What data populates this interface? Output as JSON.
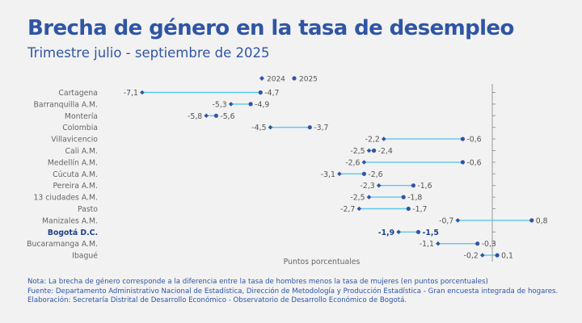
{
  "title": "Brecha de género en la tasa de desempleo",
  "subtitle": "Trimestre julio - septiembre de 2025",
  "colors": {
    "title": "#2f55a4",
    "connector": "#5bc7f0",
    "marker_2024": "#2f55a4",
    "marker_2025": "#2f55a4",
    "label_text": "#555555",
    "highlight_text": "#1f3f86",
    "axis": "#9a9a9a"
  },
  "notes": [
    "Nota: La brecha de género corresponde a la diferencia entre la tasa de hombres menos la tasa de mujeres (en puntos porcentuales)",
    "Fuente: Departamento Administrativo Nacional de Estadística, Dirección de Metodología y Producción Estadística - Gran encuesta integrada de hogares.",
    "Elaboración: Secretaría Distrital de Desarrollo Económico - Observatorio de Desarrollo Económico de Bogotá."
  ],
  "chart_data": {
    "type": "dumbbell",
    "title": "Brecha de género en la tasa de desempleo",
    "subtitle": "Trimestre julio - septiembre de 2025",
    "xlabel": "Puntos porcentuales",
    "ylabel": "",
    "xlim": [
      -7.5,
      1.0
    ],
    "grid": false,
    "legend_position": "top",
    "series_names": [
      "2024",
      "2025"
    ],
    "highlight_category": "Bogotá D.C.",
    "categories": [
      "Cartagena",
      "Barranquilla A.M.",
      "Montería",
      "Colombia",
      "Villavicencio",
      "Cali A.M.",
      "Medellín A.M.",
      "Cúcuta A.M.",
      "Pereira A.M.",
      "13 ciudades A.M.",
      "Pasto",
      "Manizales A.M.",
      "Bogotá D.C.",
      "Bucaramanga A.M.",
      "Ibagué"
    ],
    "series": [
      {
        "name": "2024",
        "values": [
          -7.1,
          -5.3,
          -5.8,
          -4.5,
          -2.2,
          -2.5,
          -2.6,
          -3.1,
          -2.3,
          -2.5,
          -2.7,
          -0.7,
          -1.9,
          -1.1,
          -0.2
        ]
      },
      {
        "name": "2025",
        "values": [
          -4.7,
          -4.9,
          -5.6,
          -3.7,
          -0.6,
          -2.4,
          -0.6,
          -2.6,
          -1.6,
          -1.8,
          -1.7,
          0.8,
          -1.5,
          -0.3,
          0.1
        ]
      }
    ],
    "value_labels_2024": [
      "-7,1",
      "-5,3",
      "-5,8",
      "-4,5",
      "-2,2",
      "-2,5",
      "-2,6",
      "-3,1",
      "-2,3",
      "-2,5",
      "-2,7",
      "-0,7",
      "-1,9",
      "-1,1",
      "-0,2"
    ],
    "value_labels_2025": [
      "-4,7",
      "-4,9",
      "-5,6",
      "-3,7",
      "-0,6",
      "-2,4",
      "-0,6",
      "-2,6",
      "-1,6",
      "-1,8",
      "-1,7",
      "0,8",
      "-1,5",
      "-0,3",
      "0,1"
    ]
  }
}
